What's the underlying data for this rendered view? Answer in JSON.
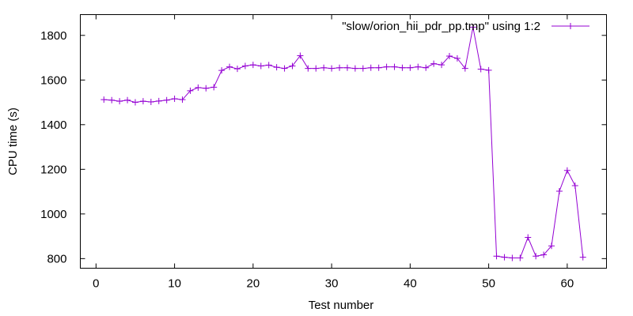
{
  "chart_data": {
    "type": "line",
    "xlabel": "Test number",
    "ylabel": "CPU time (s)",
    "xlim": [
      -2,
      65
    ],
    "ylim": [
      757,
      1893
    ],
    "xticks": [
      0,
      10,
      20,
      30,
      40,
      50,
      60
    ],
    "yticks": [
      800,
      1000,
      1200,
      1400,
      1600,
      1800
    ],
    "grid": false,
    "legend_position": "top-right",
    "series": [
      {
        "name": "\"slow/orion_hii_pdr_pp.tmp\" using 1:2",
        "color": "#9400d3",
        "marker": "plus",
        "x": [
          1,
          2,
          3,
          4,
          5,
          6,
          7,
          8,
          9,
          10,
          11,
          12,
          13,
          14,
          15,
          16,
          17,
          18,
          19,
          20,
          21,
          22,
          23,
          24,
          25,
          26,
          27,
          28,
          29,
          30,
          31,
          32,
          33,
          34,
          35,
          36,
          37,
          38,
          39,
          40,
          41,
          42,
          43,
          44,
          45,
          46,
          47,
          48,
          49,
          50,
          51,
          52,
          53,
          54,
          55,
          56,
          57,
          58,
          59,
          60,
          61,
          62
        ],
        "y": [
          1512,
          1510,
          1505,
          1510,
          1500,
          1505,
          1502,
          1506,
          1510,
          1516,
          1512,
          1552,
          1566,
          1563,
          1568,
          1643,
          1659,
          1650,
          1663,
          1668,
          1663,
          1667,
          1657,
          1652,
          1663,
          1709,
          1652,
          1652,
          1655,
          1652,
          1655,
          1655,
          1652,
          1652,
          1655,
          1655,
          1659,
          1659,
          1655,
          1655,
          1659,
          1655,
          1673,
          1668,
          1707,
          1697,
          1652,
          1837,
          1649,
          1644,
          811,
          806,
          803,
          803,
          895,
          811,
          817,
          857,
          1102,
          1195,
          1127,
          806
        ]
      }
    ]
  }
}
